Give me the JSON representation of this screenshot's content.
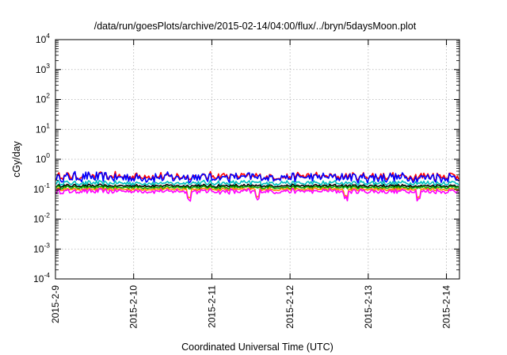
{
  "chart_data": {
    "type": "line",
    "title": "/data/run/goesPlots/archive/2015-02-14/04:00/flux/../bryn/5daysMoon.plot",
    "xlabel": "Coordinated Universal Time (UTC)",
    "ylabel": "cGy/day",
    "y_scale": "log",
    "ylim": [
      0.0001,
      10000
    ],
    "xlim": [
      "2015-02-09T00:00",
      "2015-02-14T04:00"
    ],
    "x_ticks": [
      "2015-2-9",
      "2015-2-10",
      "2015-2-11",
      "2015-2-12",
      "2015-2-13",
      "2015-2-14"
    ],
    "y_ticks": [
      {
        "base": "10",
        "exp": "-4",
        "value": 0.0001
      },
      {
        "base": "10",
        "exp": "-3",
        "value": 0.001
      },
      {
        "base": "10",
        "exp": "-2",
        "value": 0.01
      },
      {
        "base": "10",
        "exp": "-1",
        "value": 0.1
      },
      {
        "base": "10",
        "exp": "0",
        "value": 1
      },
      {
        "base": "10",
        "exp": "1",
        "value": 10
      },
      {
        "base": "10",
        "exp": "2",
        "value": 100
      },
      {
        "base": "10",
        "exp": "3",
        "value": 1000
      },
      {
        "base": "10",
        "exp": "4",
        "value": 10000
      }
    ],
    "grid": true,
    "series": [
      {
        "color": "#ff0000",
        "level": 0.27,
        "spread": 0.16
      },
      {
        "color": "#0000ff",
        "level": 0.25,
        "spread": 0.2
      },
      {
        "color": "#00c0c0",
        "level": 0.16,
        "spread": 0.1
      },
      {
        "color": "#000000",
        "level": 0.13,
        "spread": 0.06
      },
      {
        "color": "#00aa00",
        "level": 0.115,
        "spread": 0.06
      },
      {
        "color": "#ff8c00",
        "level": 0.1,
        "spread": 0.06
      },
      {
        "color": "#ff00ff",
        "level": 0.085,
        "spread": 0.1
      }
    ]
  }
}
